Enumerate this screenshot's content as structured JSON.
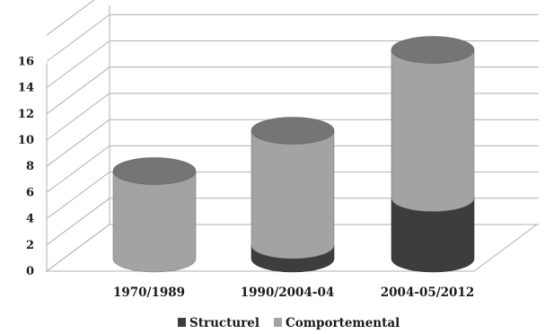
{
  "chart_data": {
    "type": "bar",
    "stacked": true,
    "style": "3d-cylinder",
    "categories": [
      "1970/1989",
      "1990/2004-04",
      "2004-05/2012"
    ],
    "series": [
      {
        "name": "Structurel",
        "values": [
          0,
          1,
          4.5
        ],
        "color": "#3d3d3d"
      },
      {
        "name": "Comportemental",
        "values": [
          6.5,
          8.5,
          11
        ],
        "color": "#a3a3a3"
      }
    ],
    "y_ticks": [
      "0",
      "2",
      "4",
      "6",
      "8",
      "10",
      "12",
      "14",
      "16"
    ],
    "ylim": [
      0,
      16
    ],
    "grid": true,
    "legend_position": "bottom"
  }
}
